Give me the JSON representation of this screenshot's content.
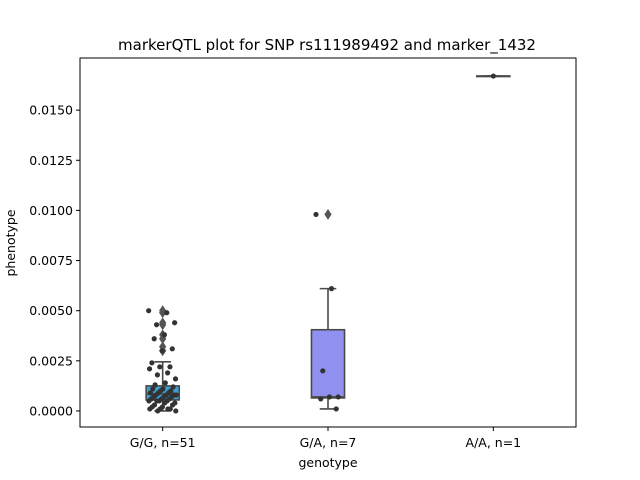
{
  "chart_data": {
    "type": "box",
    "title": "markerQTL plot for SNP rs111989492 and marker_1432",
    "xlabel": "genotype",
    "ylabel": "phenotype",
    "ylim": [
      -0.0008,
      0.0176
    ],
    "yticks": [
      "0.0000",
      "0.0025",
      "0.0050",
      "0.0075",
      "0.0100",
      "0.0125",
      "0.0150"
    ],
    "ytick_values": [
      0,
      0.0025,
      0.005,
      0.0075,
      0.01,
      0.0125,
      0.015
    ],
    "categories": [
      "G/G, n=51",
      "G/A, n=7",
      "A/A, n=1"
    ],
    "boxes": [
      {
        "category": "G/G, n=51",
        "color": "#3d9fd6",
        "q1": 0.00055,
        "median": 0.00085,
        "q3": 0.00125,
        "whisker_low": 0.0,
        "whisker_high": 0.00245,
        "outliers": [
          0.0049,
          0.005,
          0.0044,
          0.0043,
          0.0038,
          0.0036,
          0.0032,
          0.003
        ]
      },
      {
        "category": "G/A, n=7",
        "color": "#9090f0",
        "q1": 0.00065,
        "median": 0.0007,
        "q3": 0.00405,
        "whisker_low": 0.0001,
        "whisker_high": 0.0061,
        "outliers": [
          0.0098
        ]
      },
      {
        "category": "A/A, n=1",
        "color": "#555555",
        "q1": 0.0167,
        "median": 0.0167,
        "q3": 0.0167,
        "whisker_low": 0.0167,
        "whisker_high": 0.0167,
        "outliers": []
      }
    ],
    "points": [
      {
        "category": "G/G, n=51",
        "values": [
          0.005,
          0.0049,
          0.0043,
          0.0044,
          0.0038,
          0.0036,
          0.0031,
          0.003,
          0.0024,
          0.0022,
          0.0022,
          0.0021,
          0.0019,
          0.0018,
          0.0016,
          0.0014,
          0.0013,
          0.0012,
          0.0011,
          0.0011,
          0.001,
          0.001,
          0.0009,
          0.0009,
          0.0009,
          0.0008,
          0.0008,
          0.0008,
          0.0008,
          0.0007,
          0.0007,
          0.0007,
          0.0006,
          0.0006,
          0.0006,
          0.0005,
          0.0005,
          0.0005,
          0.0005,
          0.0004,
          0.0004,
          0.0003,
          0.0003,
          0.0002,
          0.0002,
          0.0001,
          0.0001,
          0.0001,
          0.0001,
          0.0,
          0.0
        ]
      },
      {
        "category": "G/A, n=7",
        "values": [
          0.0098,
          0.0061,
          0.002,
          0.0007,
          0.0007,
          0.0006,
          0.0001
        ]
      },
      {
        "category": "A/A, n=1",
        "values": [
          0.0167
        ]
      }
    ],
    "colors": {
      "box_edge": "#4a4a4a",
      "point": "#333333"
    }
  }
}
